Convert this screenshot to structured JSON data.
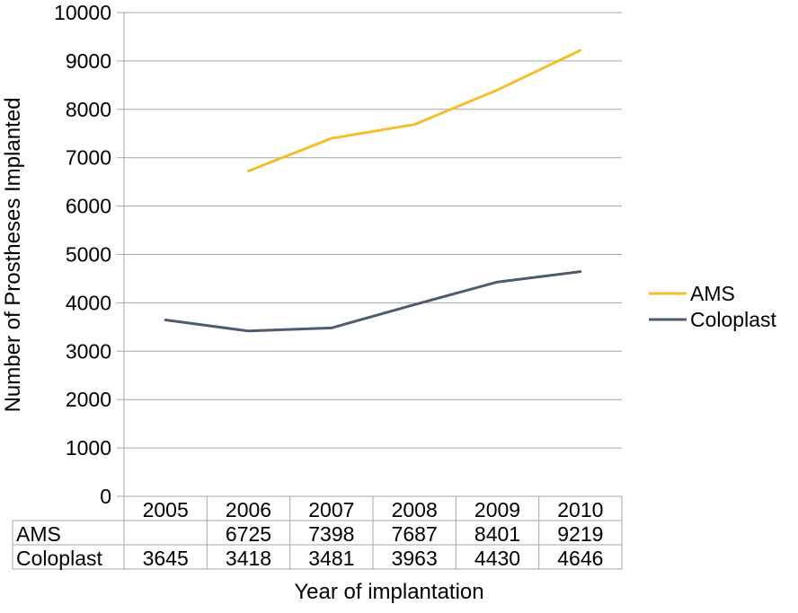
{
  "chart_data": {
    "type": "line",
    "title": "",
    "xlabel": "Year of implantation",
    "ylabel": "Number of Prostheses Implanted",
    "categories": [
      "2005",
      "2006",
      "2007",
      "2008",
      "2009",
      "2010"
    ],
    "ylim": [
      0,
      10000
    ],
    "yticks": [
      "0",
      "1000",
      "2000",
      "3000",
      "4000",
      "5000",
      "6000",
      "7000",
      "8000",
      "9000",
      "10000"
    ],
    "grid": true,
    "legend_position": "right",
    "series": [
      {
        "name": "AMS",
        "color": "#f4be2e",
        "values": [
          null,
          6725,
          7398,
          7687,
          8401,
          9219
        ],
        "table_values": [
          "",
          "6725",
          "7398",
          "7687",
          "8401",
          "9219"
        ]
      },
      {
        "name": "Coloplast",
        "color": "#4f5b6e",
        "values": [
          3645,
          3418,
          3481,
          3963,
          4430,
          4646
        ],
        "table_values": [
          "3645",
          "3418",
          "3481",
          "3963",
          "4430",
          "4646"
        ]
      }
    ]
  }
}
